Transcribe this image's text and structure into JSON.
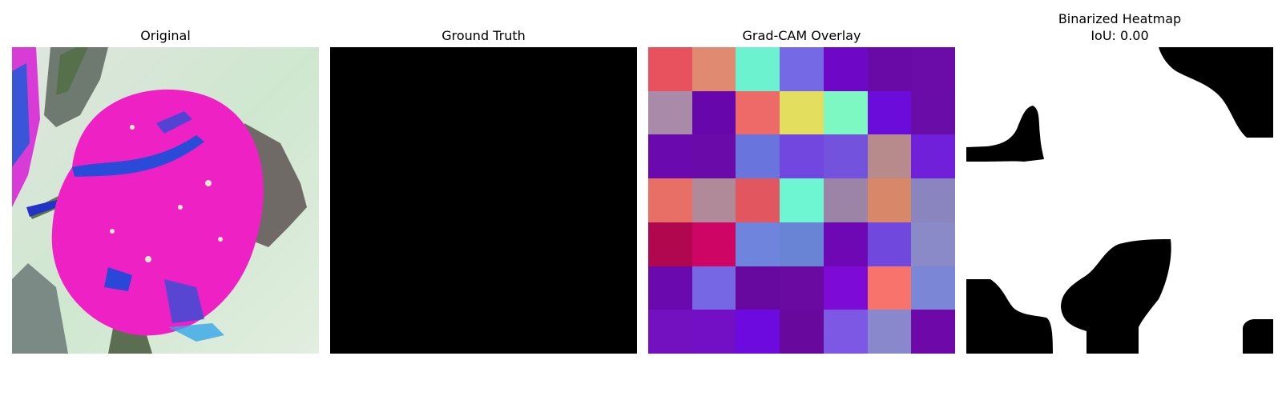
{
  "panels": {
    "original": {
      "title": "Original"
    },
    "ground_truth": {
      "title": "Ground Truth"
    },
    "gradcam": {
      "title": "Grad-CAM Overlay",
      "grid_colors": [
        [
          "#e8525f",
          "#e08a72",
          "#6cf2cf",
          "#7569e5",
          "#6f08c6",
          "#6a0aa6",
          "#6b0ca8"
        ],
        [
          "#a98aa8",
          "#6706ab",
          "#ee6a68",
          "#e3de5e",
          "#7ef8c3",
          "#6c0cdb",
          "#6a0ca8"
        ],
        [
          "#6a0aae",
          "#6a0aa8",
          "#6a74dd",
          "#7147e0",
          "#7352dd",
          "#b78a8c",
          "#7020d9"
        ],
        [
          "#e86f66",
          "#b08a98",
          "#e25660",
          "#6ef5d2",
          "#9b84a6",
          "#d98769",
          "#8a84bf"
        ],
        [
          "#b0074e",
          "#cf0565",
          "#6e84dd",
          "#6a84d5",
          "#6d08b4",
          "#7048de",
          "#8a8ac8"
        ],
        [
          "#6a09ae",
          "#7668e5",
          "#67099e",
          "#6a0aa1",
          "#7e0ad6",
          "#f7736b",
          "#7b86d6"
        ],
        [
          "#7310c0",
          "#7310c6",
          "#6c0ae0",
          "#68089d",
          "#7c58e5",
          "#8a88cd",
          "#6f08a8"
        ]
      ]
    },
    "binarized": {
      "title_line1": "Binarized Heatmap",
      "title_line2": "IoU: 0.00"
    }
  }
}
